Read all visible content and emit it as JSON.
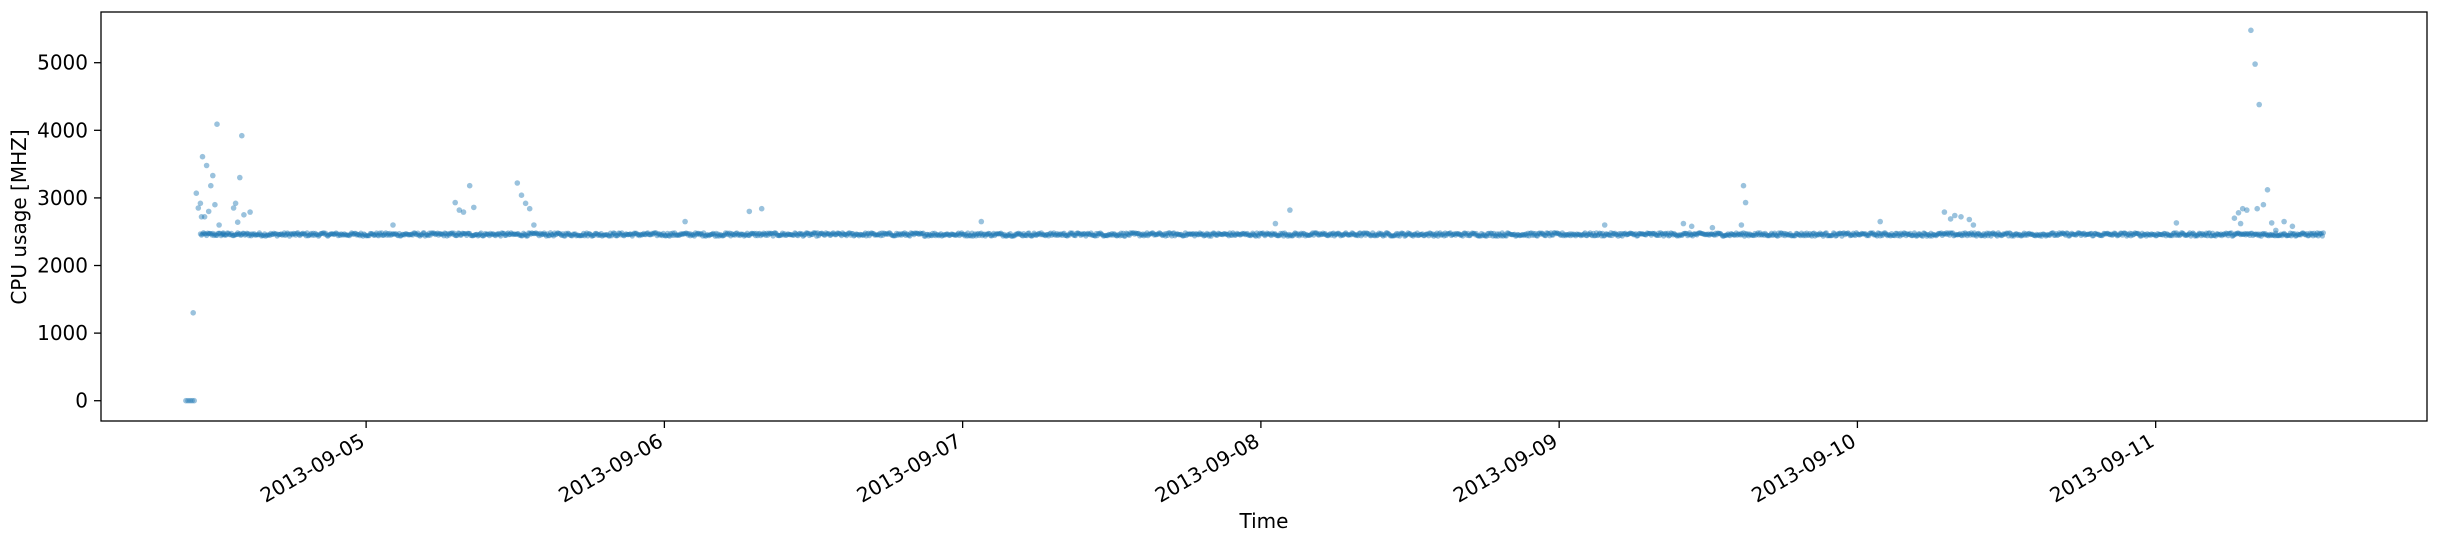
{
  "chart_data": {
    "type": "scatter",
    "title": "",
    "xlabel": "Time",
    "ylabel": "CPU usage [MHZ]",
    "x_axis_type": "datetime",
    "xlim": [
      "2013-09-04 02:40",
      "2013-09-11 21:50"
    ],
    "ylim": [
      -300,
      5750
    ],
    "x_ticks": [
      "2013-09-05",
      "2013-09-06",
      "2013-09-07",
      "2013-09-08",
      "2013-09-09",
      "2013-09-10",
      "2013-09-11"
    ],
    "y_ticks": [
      0,
      1000,
      2000,
      3000,
      4000,
      5000
    ],
    "grid": false,
    "legend": "none",
    "colors": {
      "marker": "#1f77b4"
    },
    "marker_alpha": 0.45,
    "series": [
      {
        "points": [
          [
            "2013-09-04 09:30",
            0
          ],
          [
            "2013-09-04 09:40",
            0
          ],
          [
            "2013-09-04 09:50",
            0
          ],
          [
            "2013-09-04 10:00",
            0
          ],
          [
            "2013-09-04 10:10",
            0
          ],
          [
            "2013-09-04 10:05",
            1300
          ],
          [
            "2013-09-04 10:20",
            3070
          ],
          [
            "2013-09-04 10:30",
            2850
          ],
          [
            "2013-09-04 10:40",
            2920
          ],
          [
            "2013-09-04 10:45",
            2720
          ],
          [
            "2013-09-04 10:50",
            3610
          ],
          [
            "2013-09-04 11:00",
            2720
          ],
          [
            "2013-09-04 11:10",
            3480
          ],
          [
            "2013-09-04 11:20",
            2800
          ],
          [
            "2013-09-04 11:30",
            3180
          ],
          [
            "2013-09-04 11:40",
            3330
          ],
          [
            "2013-09-04 11:50",
            2900
          ],
          [
            "2013-09-04 12:00",
            4090
          ],
          [
            "2013-09-04 12:10",
            2600
          ],
          [
            "2013-09-04 12:30",
            2480
          ],
          [
            "2013-09-04 13:20",
            2850
          ],
          [
            "2013-09-04 13:30",
            2920
          ],
          [
            "2013-09-04 13:40",
            2640
          ],
          [
            "2013-09-04 13:50",
            3300
          ],
          [
            "2013-09-04 14:00",
            3920
          ],
          [
            "2013-09-04 14:10",
            2750
          ],
          [
            "2013-09-04 14:40",
            2790
          ],
          [
            "2013-09-05 02:10",
            2600
          ],
          [
            "2013-09-05 07:10",
            2930
          ],
          [
            "2013-09-05 07:30",
            2820
          ],
          [
            "2013-09-05 07:50",
            2790
          ],
          [
            "2013-09-05 08:20",
            3180
          ],
          [
            "2013-09-05 08:40",
            2860
          ],
          [
            "2013-09-05 12:10",
            3220
          ],
          [
            "2013-09-05 12:30",
            3040
          ],
          [
            "2013-09-05 12:50",
            2920
          ],
          [
            "2013-09-05 13:10",
            2840
          ],
          [
            "2013-09-05 13:30",
            2600
          ],
          [
            "2013-09-06 01:40",
            2650
          ],
          [
            "2013-09-06 06:50",
            2800
          ],
          [
            "2013-09-06 07:50",
            2840
          ],
          [
            "2013-09-07 01:30",
            2650
          ],
          [
            "2013-09-08 01:10",
            2620
          ],
          [
            "2013-09-08 02:20",
            2820
          ],
          [
            "2013-09-09 03:40",
            2600
          ],
          [
            "2013-09-09 10:00",
            2620
          ],
          [
            "2013-09-09 10:40",
            2580
          ],
          [
            "2013-09-09 12:20",
            2560
          ],
          [
            "2013-09-09 14:40",
            2600
          ],
          [
            "2013-09-09 14:50",
            3180
          ],
          [
            "2013-09-09 15:00",
            2930
          ],
          [
            "2013-09-10 01:50",
            2650
          ],
          [
            "2013-09-10 07:00",
            2790
          ],
          [
            "2013-09-10 07:30",
            2690
          ],
          [
            "2013-09-10 07:50",
            2740
          ],
          [
            "2013-09-10 08:20",
            2720
          ],
          [
            "2013-09-10 09:00",
            2680
          ],
          [
            "2013-09-10 09:20",
            2600
          ],
          [
            "2013-09-11 01:40",
            2630
          ],
          [
            "2013-09-11 06:20",
            2700
          ],
          [
            "2013-09-11 06:40",
            2780
          ],
          [
            "2013-09-11 06:50",
            2620
          ],
          [
            "2013-09-11 07:00",
            2840
          ],
          [
            "2013-09-11 07:20",
            2820
          ],
          [
            "2013-09-11 07:40",
            5480
          ],
          [
            "2013-09-11 08:00",
            4980
          ],
          [
            "2013-09-11 08:10",
            2840
          ],
          [
            "2013-09-11 08:20",
            4380
          ],
          [
            "2013-09-11 08:40",
            2900
          ],
          [
            "2013-09-11 09:00",
            3120
          ],
          [
            "2013-09-11 09:20",
            2630
          ],
          [
            "2013-09-11 09:40",
            2520
          ],
          [
            "2013-09-11 10:20",
            2650
          ],
          [
            "2013-09-11 11:00",
            2580
          ]
        ],
        "baseline": {
          "x_from": "2013-09-04 10:40",
          "x_to": "2013-09-11 13:30",
          "step_minutes": 5,
          "y_center": 2460,
          "y_spread": 25
        }
      }
    ]
  }
}
